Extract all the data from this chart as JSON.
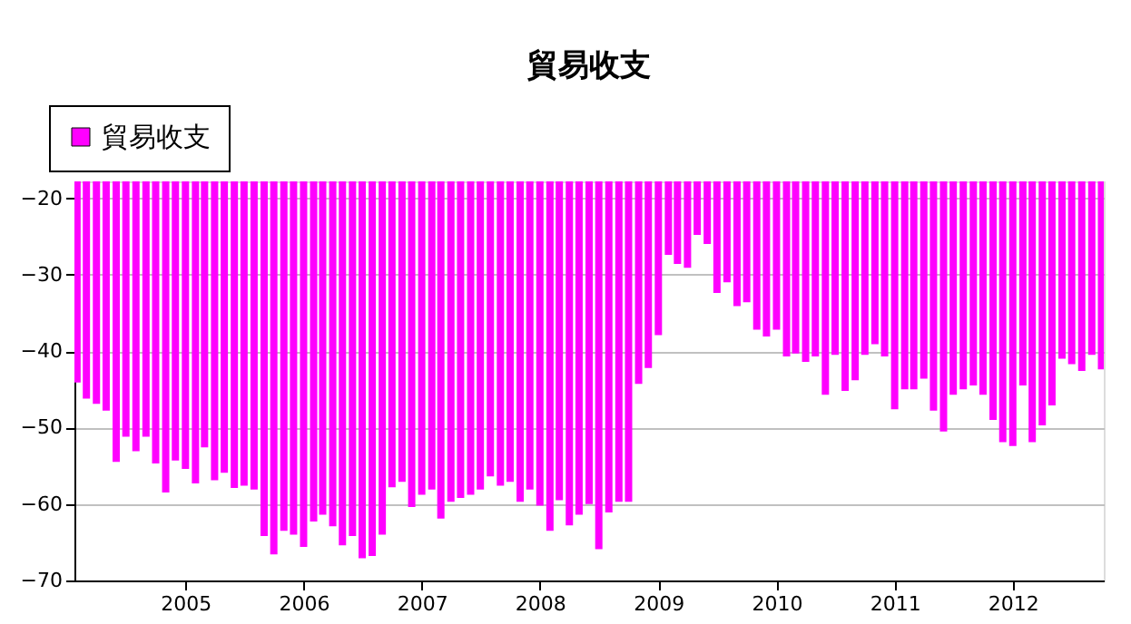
{
  "chart_data": {
    "type": "bar",
    "title": "貿易收支",
    "x": [
      "2004-02",
      "2004-03",
      "2004-04",
      "2004-05",
      "2004-06",
      "2004-07",
      "2004-08",
      "2004-09",
      "2004-10",
      "2004-11",
      "2004-12",
      "2005-01",
      "2005-02",
      "2005-03",
      "2005-04",
      "2005-05",
      "2005-06",
      "2005-07",
      "2005-08",
      "2005-09",
      "2005-10",
      "2005-11",
      "2005-12",
      "2006-01",
      "2006-02",
      "2006-03",
      "2006-04",
      "2006-05",
      "2006-06",
      "2006-07",
      "2006-08",
      "2006-09",
      "2006-10",
      "2006-11",
      "2006-12",
      "2007-01",
      "2007-02",
      "2007-03",
      "2007-04",
      "2007-05",
      "2007-06",
      "2007-07",
      "2007-08",
      "2007-09",
      "2007-10",
      "2007-11",
      "2007-12",
      "2008-01",
      "2008-02",
      "2008-03",
      "2008-04",
      "2008-05",
      "2008-06",
      "2008-07",
      "2008-08",
      "2008-09",
      "2008-10",
      "2008-11",
      "2008-12",
      "2009-01",
      "2009-02",
      "2009-03",
      "2009-04",
      "2009-05",
      "2009-06",
      "2009-07",
      "2009-08",
      "2009-09",
      "2009-10",
      "2009-11",
      "2009-12",
      "2010-01",
      "2010-02",
      "2010-03",
      "2010-04",
      "2010-05",
      "2010-06",
      "2010-07",
      "2010-08",
      "2010-09",
      "2010-10",
      "2010-11",
      "2010-12",
      "2011-01",
      "2011-02",
      "2011-03",
      "2011-04",
      "2011-05",
      "2011-06",
      "2011-07",
      "2011-08",
      "2011-09",
      "2011-10",
      "2011-11",
      "2011-12",
      "2012-01",
      "2012-02",
      "2012-03",
      "2012-04",
      "2012-05",
      "2012-06",
      "2012-07",
      "2012-08",
      "2012-09",
      "2012-10"
    ],
    "series": [
      {
        "name": "貿易收支",
        "color": "#ff00ff",
        "values": [
          -44.1,
          -46.2,
          -46.9,
          -47.8,
          -54.5,
          -51.2,
          -53.1,
          -51.2,
          -54.7,
          -58.5,
          -54.3,
          -55.4,
          -57.3,
          -52.6,
          -56.9,
          -55.9,
          -57.9,
          -57.6,
          -58.1,
          -64.2,
          -66.6,
          -63.5,
          -64.0,
          -65.6,
          -62.3,
          -61.4,
          -62.9,
          -65.4,
          -64.2,
          -67.1,
          -66.8,
          -64.0,
          -57.8,
          -57.1,
          -60.4,
          -58.8,
          -58.1,
          -61.9,
          -59.7,
          -59.2,
          -58.8,
          -58.1,
          -56.4,
          -57.6,
          -57.1,
          -59.7,
          -58.1,
          -60.2,
          -63.5,
          -59.5,
          -62.8,
          -61.4,
          -60.0,
          -65.9,
          -61.1,
          -59.7,
          -59.7,
          -44.3,
          -42.2,
          -37.9,
          -27.4,
          -28.6,
          -29.1,
          -24.8,
          -26.0,
          -32.4,
          -31.0,
          -34.1,
          -33.6,
          -37.2,
          -38.1,
          -37.2,
          -40.7,
          -40.3,
          -41.4,
          -40.7,
          -45.7,
          -40.5,
          -45.2,
          -43.8,
          -40.5,
          -39.1,
          -40.7,
          -47.6,
          -45.0,
          -45.0,
          -43.6,
          -47.8,
          -50.5,
          -45.7,
          -45.0,
          -44.5,
          -45.7,
          -49.0,
          -51.9,
          -52.4,
          -44.5,
          -51.9,
          -49.7,
          -47.1,
          -41.0,
          -41.7,
          -42.6,
          -40.5,
          -42.4
        ]
      }
    ],
    "xlim": [
      "2004-01-24",
      "2012-10-08"
    ],
    "xticks": [
      "2005",
      "2006",
      "2007",
      "2008",
      "2009",
      "2010",
      "2011",
      "2012"
    ],
    "ylim": [
      -70,
      -17.8
    ],
    "yticks": [
      -70,
      -60,
      -50,
      -40,
      -30,
      -20
    ],
    "grid": "y",
    "legend": "top left"
  }
}
